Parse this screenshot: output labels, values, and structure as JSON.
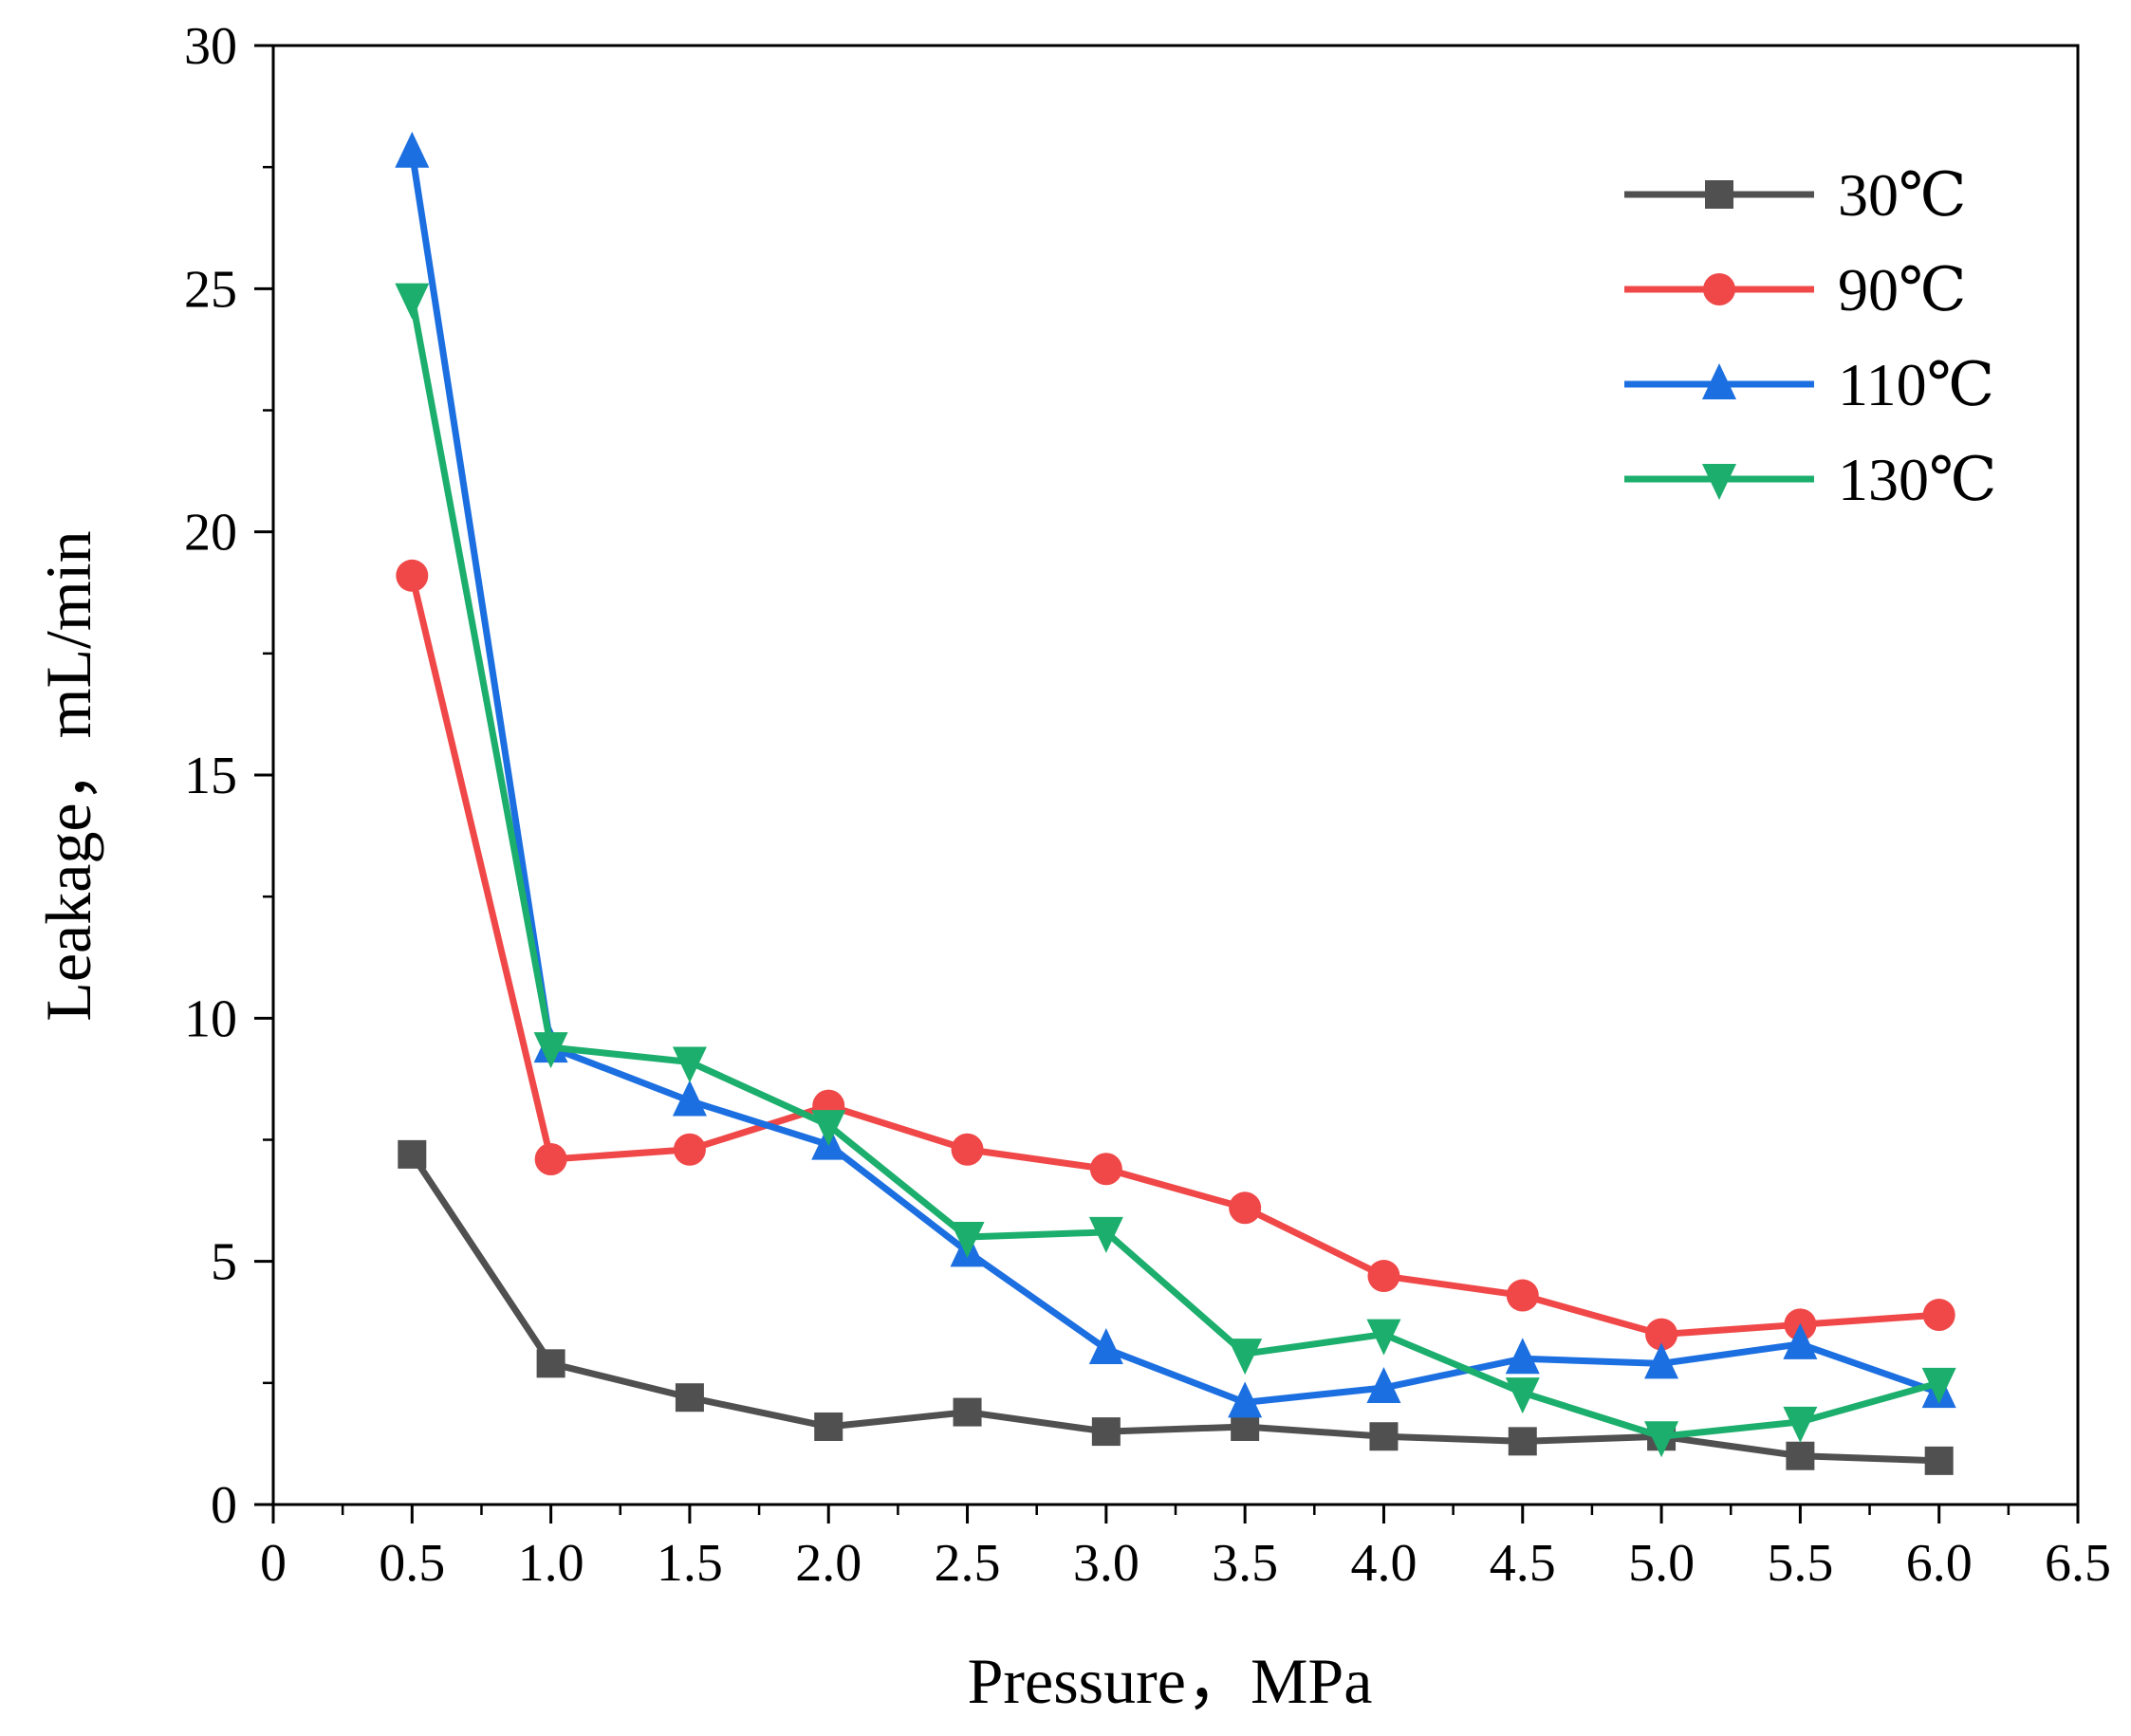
{
  "chart_data": {
    "type": "line",
    "xlabel": "Pressure，MPa",
    "ylabel": "Leakage，mL/min",
    "xlim": [
      0,
      6.5
    ],
    "ylim": [
      0,
      30
    ],
    "x_ticks": [
      "0",
      "0.5",
      "1.0",
      "1.5",
      "2.0",
      "2.5",
      "3.0",
      "3.5",
      "4.0",
      "4.5",
      "5.0",
      "5.5",
      "6.0",
      "6.5"
    ],
    "y_ticks": [
      "0",
      "5",
      "10",
      "15",
      "20",
      "25",
      "30"
    ],
    "grid": false,
    "legend_position": "top-right",
    "x": [
      0.5,
      1.0,
      1.5,
      2.0,
      2.5,
      3.0,
      3.5,
      4.0,
      4.5,
      5.0,
      5.5,
      6.0
    ],
    "series": [
      {
        "name": "30℃",
        "color": "#505050",
        "marker": "square",
        "values": [
          7.2,
          2.9,
          2.2,
          1.6,
          1.9,
          1.5,
          1.6,
          1.4,
          1.3,
          1.4,
          1.0,
          0.9
        ]
      },
      {
        "name": "90℃",
        "color": "#f04848",
        "marker": "circle",
        "values": [
          19.1,
          7.1,
          7.3,
          8.2,
          7.3,
          6.9,
          6.1,
          4.7,
          4.3,
          3.5,
          3.7,
          3.9
        ]
      },
      {
        "name": "110℃",
        "color": "#1c6fe0",
        "marker": "triangle-up",
        "values": [
          27.8,
          9.4,
          8.3,
          7.4,
          5.2,
          3.2,
          2.1,
          2.4,
          3.0,
          2.9,
          3.3,
          2.3
        ]
      },
      {
        "name": "130℃",
        "color": "#1cae6c",
        "marker": "triangle-down",
        "values": [
          24.8,
          9.4,
          9.1,
          7.8,
          5.5,
          5.6,
          3.1,
          3.5,
          2.3,
          1.4,
          1.7,
          2.5
        ]
      }
    ]
  }
}
